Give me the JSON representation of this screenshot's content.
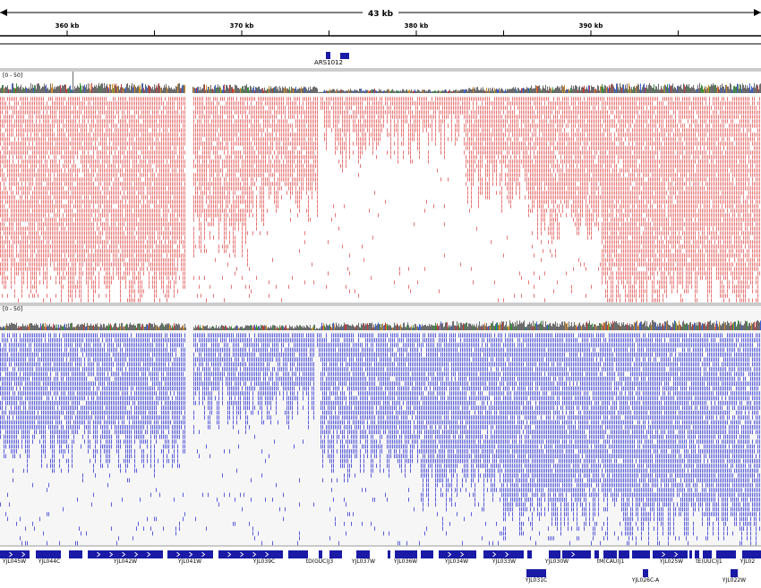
{
  "ruler": {
    "span_label": "43 kb",
    "ticks": [
      {
        "kb": 360,
        "label": "360 kb"
      },
      {
        "kb": 370,
        "label": "370 kb"
      },
      {
        "kb": 380,
        "label": "380 kb"
      },
      {
        "kb": 390,
        "label": "390 kb"
      }
    ]
  },
  "features_top": [
    {
      "name": "ARS1012",
      "label": "ARS1012"
    }
  ],
  "tracks": [
    {
      "name": "alignments-track-1",
      "coverage_range": "[0 - 50]",
      "color": "#e25b5b"
    },
    {
      "name": "alignments-track-2",
      "coverage_range": "[0 - 50]",
      "color": "#4a4ed6"
    }
  ],
  "genes": {
    "labels": [
      "YJL045W",
      "YJL044C",
      "YJL042W",
      "YJL041W",
      "YJL039C",
      "tD(GUC)J3",
      "YJL037W",
      "YJL036W",
      "YJL034W",
      "YJL033W",
      "YJL030W",
      "tM(CAU)J1",
      "YJL025W",
      "tE(UUC)J1",
      "YJL02"
    ],
    "labels_row2": [
      "YJL031C",
      "YJL026C-A",
      "YJL022W"
    ]
  },
  "colors": {
    "gene": "#1a1aa6",
    "ruler": "#000000",
    "panel_divider": "#9a9a9a",
    "coverage_palette": [
      "#6b6b6b",
      "#3b8f3b",
      "#d08a2a",
      "#3b5fd0",
      "#c23b3b"
    ]
  }
}
